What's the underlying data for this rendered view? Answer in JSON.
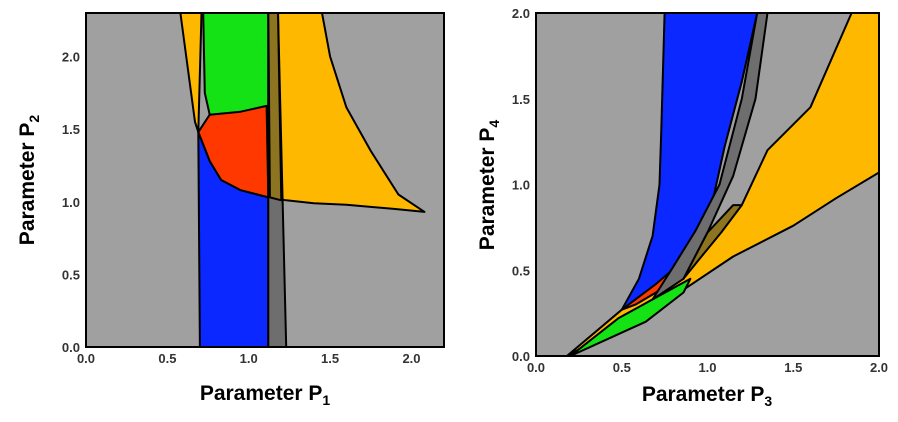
{
  "colors": {
    "background_region": "#a0a0a0",
    "blue_region": "#0a28ff",
    "green_region": "#14e214",
    "red_region": "#ff3800",
    "orange_region": "#ffb800",
    "dark_band": "#6e6e6e",
    "olive_overlap": "#8c7420"
  },
  "chart_data": [
    {
      "type": "area",
      "panel": "left",
      "xlabel": "Parameter P",
      "xlabel_sub": "1",
      "ylabel": "Parameter P",
      "ylabel_sub": "2",
      "xlim": [
        0.0,
        2.2
      ],
      "ylim": [
        0.0,
        2.3
      ],
      "xticks": [
        "0.0",
        "0.5",
        "1.0",
        "1.5",
        "2.0"
      ],
      "yticks": [
        "0.0",
        "0.5",
        "1.0",
        "1.5",
        "2.0"
      ],
      "regions": [
        {
          "color": "orange_region",
          "points": [
            [
              0.58,
              2.3
            ],
            [
              0.67,
              1.55
            ],
            [
              0.69,
              1.48
            ],
            [
              0.71,
              2.3
            ],
            [
              1.12,
              2.3
            ],
            [
              1.13,
              1.03
            ],
            [
              1.23,
              1.01
            ],
            [
              1.4,
              0.99
            ],
            [
              1.6,
              0.98
            ],
            [
              1.9,
              0.95
            ],
            [
              2.08,
              0.93
            ],
            [
              1.92,
              1.05
            ],
            [
              1.75,
              1.35
            ],
            [
              1.6,
              1.65
            ],
            [
              1.5,
              2.0
            ],
            [
              1.45,
              2.3
            ]
          ]
        },
        {
          "color": "green_region",
          "points": [
            [
              0.72,
              2.3
            ],
            [
              1.12,
              2.3
            ],
            [
              1.12,
              1.63
            ],
            [
              0.76,
              1.6
            ],
            [
              0.73,
              1.75
            ]
          ]
        },
        {
          "color": "red_region",
          "points": [
            [
              0.69,
              1.48
            ],
            [
              0.76,
              1.6
            ],
            [
              0.95,
              1.62
            ],
            [
              1.11,
              1.66
            ],
            [
              1.12,
              1.03
            ],
            [
              0.95,
              1.08
            ],
            [
              0.83,
              1.15
            ],
            [
              0.76,
              1.28
            ]
          ]
        },
        {
          "color": "blue_region",
          "points": [
            [
              0.69,
              1.48
            ],
            [
              0.76,
              1.28
            ],
            [
              0.83,
              1.15
            ],
            [
              0.95,
              1.08
            ],
            [
              1.12,
              1.03
            ],
            [
              1.12,
              0.0
            ],
            [
              0.7,
              0.0
            ]
          ]
        },
        {
          "color": "dark_band",
          "points": [
            [
              1.12,
              2.3
            ],
            [
              1.18,
              2.3
            ],
            [
              1.23,
              0.0
            ],
            [
              1.12,
              0.0
            ]
          ]
        },
        {
          "color": "olive_overlap",
          "points": [
            [
              1.12,
              2.3
            ],
            [
              1.18,
              2.3
            ],
            [
              1.2,
              1.01
            ],
            [
              1.13,
              1.03
            ]
          ]
        }
      ]
    },
    {
      "type": "area",
      "panel": "right",
      "xlabel": "Parameter P",
      "xlabel_sub": "3",
      "ylabel": "Parameter P",
      "ylabel_sub": "4",
      "xlim": [
        0.0,
        2.0
      ],
      "ylim": [
        0.0,
        2.0
      ],
      "xticks": [
        "0.0",
        "0.5",
        "1.0",
        "1.5",
        "2.0"
      ],
      "yticks": [
        "0.0",
        "0.5",
        "1.0",
        "1.5",
        "2.0"
      ],
      "regions": [
        {
          "color": "orange_region",
          "points": [
            [
              0.18,
              0.0
            ],
            [
              0.62,
              0.24
            ],
            [
              0.85,
              0.38
            ],
            [
              1.15,
              0.58
            ],
            [
              1.5,
              0.76
            ],
            [
              1.75,
              0.92
            ],
            [
              2.0,
              1.07
            ],
            [
              2.0,
              2.0
            ],
            [
              1.84,
              2.0
            ],
            [
              1.6,
              1.45
            ],
            [
              1.35,
              1.2
            ],
            [
              1.2,
              0.88
            ],
            [
              1.0,
              0.72
            ],
            [
              0.8,
              0.55
            ],
            [
              0.5,
              0.27
            ]
          ]
        },
        {
          "color": "green_region",
          "points": [
            [
              0.2,
              0.0
            ],
            [
              0.48,
              0.22
            ],
            [
              0.68,
              0.33
            ],
            [
              0.9,
              0.45
            ],
            [
              0.86,
              0.37
            ],
            [
              0.64,
              0.2
            ]
          ]
        },
        {
          "color": "red_region",
          "points": [
            [
              0.5,
              0.27
            ],
            [
              0.75,
              0.48
            ],
            [
              0.98,
              0.7
            ],
            [
              1.02,
              0.66
            ],
            [
              0.86,
              0.5
            ],
            [
              0.7,
              0.37
            ],
            [
              0.58,
              0.3
            ]
          ]
        },
        {
          "color": "blue_region",
          "points": [
            [
              0.5,
              0.27
            ],
            [
              0.6,
              0.45
            ],
            [
              0.68,
              0.7
            ],
            [
              0.72,
              1.0
            ],
            [
              0.73,
              1.3
            ],
            [
              0.75,
              2.0
            ],
            [
              1.29,
              2.0
            ],
            [
              1.2,
              1.6
            ],
            [
              1.1,
              1.22
            ],
            [
              1.04,
              0.95
            ],
            [
              0.98,
              0.7
            ],
            [
              0.85,
              0.55
            ],
            [
              0.7,
              0.42
            ]
          ]
        },
        {
          "color": "dark_band",
          "points": [
            [
              1.29,
              2.0
            ],
            [
              1.35,
              2.0
            ],
            [
              1.28,
              1.5
            ],
            [
              1.15,
              1.05
            ],
            [
              1.0,
              0.72
            ],
            [
              0.86,
              0.45
            ],
            [
              0.68,
              0.33
            ],
            [
              0.8,
              0.52
            ],
            [
              0.93,
              0.73
            ],
            [
              1.07,
              1.0
            ],
            [
              1.2,
              1.5
            ]
          ]
        },
        {
          "color": "olive_overlap",
          "points": [
            [
              0.86,
              0.45
            ],
            [
              1.0,
              0.72
            ],
            [
              1.15,
              0.88
            ],
            [
              1.2,
              0.88
            ],
            [
              1.08,
              0.72
            ],
            [
              0.94,
              0.55
            ]
          ]
        }
      ]
    }
  ]
}
